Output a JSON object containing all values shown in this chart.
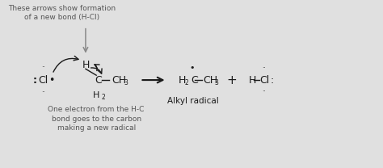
{
  "bg_color": "#e0e0e0",
  "text_color": "#1a1a1a",
  "dark_gray": "#333333",
  "mid_gray": "#666666",
  "annotation_gray": "#555555",
  "top_annotation": "These arrows show formation\nof a new bond (H-Cl)",
  "bottom_annotation": "One electron from the H-C\nbond goes to the carbon\nmaking a new radical",
  "alkyl_label": "Alkyl radical",
  "figsize": [
    4.74,
    2.08
  ],
  "dpi": 100
}
